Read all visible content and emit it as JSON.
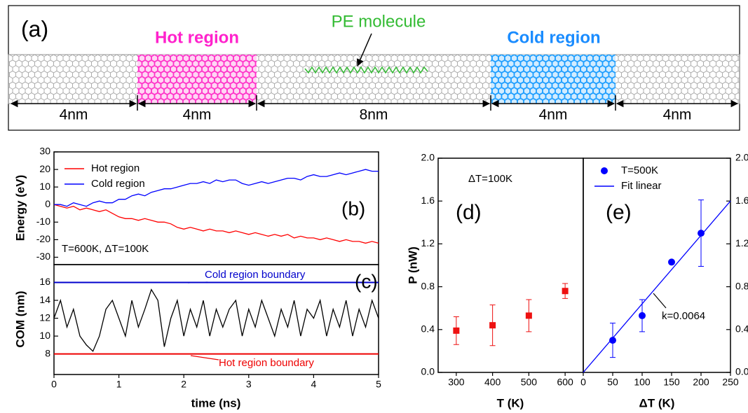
{
  "diagram": {
    "label": "(a)",
    "hot_region": "Hot region",
    "molecule": "PE molecule",
    "cold_region": "Cold region",
    "lengths": [
      "4nm",
      "4nm",
      "8nm",
      "4nm",
      "4nm"
    ]
  },
  "chart_data": [
    {
      "type": "line",
      "label": "(b)",
      "annotation": "T=600K, ΔT=100K",
      "ylabel": "Energy (eV)",
      "x": [
        0,
        0.1,
        0.2,
        0.3,
        0.4,
        0.5,
        0.6,
        0.7,
        0.8,
        0.9,
        1,
        1.1,
        1.2,
        1.3,
        1.4,
        1.5,
        1.6,
        1.7,
        1.8,
        1.9,
        2,
        2.1,
        2.2,
        2.3,
        2.4,
        2.5,
        2.6,
        2.7,
        2.8,
        2.9,
        3,
        3.1,
        3.2,
        3.3,
        3.4,
        3.5,
        3.6,
        3.7,
        3.8,
        3.9,
        4,
        4.1,
        4.2,
        4.3,
        4.4,
        4.5,
        4.6,
        4.7,
        4.8,
        4.9,
        5
      ],
      "xlim": [
        0,
        5
      ],
      "ylim": [
        -34.2,
        30
      ],
      "yticks": [
        -30,
        -20,
        -10,
        0,
        10,
        20,
        30
      ],
      "legend": "upper left",
      "series": [
        {
          "name": "Hot region",
          "color": "#ff0000",
          "values": [
            0,
            -1,
            -2,
            -1,
            -3,
            -2,
            -3,
            -4,
            -3,
            -5,
            -7,
            -8,
            -8,
            -9,
            -8,
            -9,
            -10,
            -10,
            -11,
            -13,
            -14,
            -13,
            -14,
            -15,
            -14,
            -15,
            -15,
            -16,
            -15,
            -16,
            -17,
            -16,
            -17,
            -18,
            -17,
            -18,
            -17,
            -19,
            -18,
            -19,
            -19,
            -20,
            -19,
            -20,
            -21,
            -20,
            -21,
            -21,
            -22,
            -21,
            -22
          ]
        },
        {
          "name": "Cold region",
          "color": "#0000ff",
          "values": [
            0,
            0,
            -1,
            1,
            0,
            -1,
            1,
            2,
            1,
            1,
            3,
            3,
            5,
            6,
            5,
            7,
            8,
            9,
            9,
            10,
            11,
            12,
            12,
            13,
            12,
            14,
            13,
            14,
            14,
            12,
            11,
            12,
            13,
            12,
            13,
            14,
            15,
            15,
            14,
            16,
            17,
            16,
            16,
            17,
            18,
            17,
            18,
            19,
            20,
            19,
            19
          ]
        }
      ]
    },
    {
      "type": "line",
      "label": "(c)",
      "ylabel": "COM (nm)",
      "xlabel": "time (ns)",
      "x": [
        0,
        0.1,
        0.2,
        0.3,
        0.4,
        0.5,
        0.6,
        0.7,
        0.8,
        0.9,
        1,
        1.1,
        1.2,
        1.3,
        1.4,
        1.5,
        1.6,
        1.7,
        1.8,
        1.9,
        2,
        2.1,
        2.2,
        2.3,
        2.4,
        2.5,
        2.6,
        2.7,
        2.8,
        2.9,
        3,
        3.1,
        3.2,
        3.3,
        3.4,
        3.5,
        3.6,
        3.7,
        3.8,
        3.9,
        4,
        4.1,
        4.2,
        4.3,
        4.4,
        4.5,
        4.6,
        4.7,
        4.8,
        4.9,
        5
      ],
      "xlim": [
        0,
        5
      ],
      "xticks": [
        0,
        1,
        2,
        3,
        4,
        5
      ],
      "ylim": [
        5.7,
        18
      ],
      "yticks": [
        8,
        10,
        12,
        14,
        16
      ],
      "series": [
        {
          "color": "#000000",
          "values": [
            12,
            14,
            11,
            13,
            10,
            9,
            8.3,
            10,
            13,
            14,
            12,
            10,
            14,
            11,
            13,
            15.2,
            14,
            8.8,
            12,
            14,
            10,
            13,
            11,
            14,
            10,
            13,
            11,
            13,
            14,
            10,
            13,
            11,
            14,
            12,
            10,
            13,
            11,
            14,
            10,
            13,
            12,
            14,
            10,
            13,
            11,
            14,
            10,
            13,
            11,
            14,
            12
          ]
        }
      ],
      "reference_lines": [
        {
          "label": "Cold region boundary",
          "value": 16,
          "color": "#0000cc"
        },
        {
          "label": "Hot region boundary",
          "value": 8,
          "color": "#ee0000"
        }
      ]
    },
    {
      "type": "scatter",
      "label": "(d)",
      "annotation": "ΔT=100K",
      "xlabel": "T (K)",
      "ylabel": "P (nW)",
      "x": [
        300,
        400,
        500,
        600
      ],
      "values": [
        0.39,
        0.44,
        0.53,
        0.76
      ],
      "errors": [
        0.13,
        0.19,
        0.15,
        0.07
      ],
      "color": "#ee1111",
      "marker": "square",
      "xlim": [
        250,
        650
      ],
      "xticks": [
        300,
        400,
        500,
        600
      ],
      "ylim": [
        0,
        2
      ],
      "yticks": [
        {
          "value": 0,
          "label": "0.0"
        },
        0.4,
        0.8,
        1.2,
        1.6,
        {
          "value": 2,
          "label": "2.0"
        }
      ]
    },
    {
      "type": "scatter",
      "label": "(e)",
      "annotation": "k=0.0064",
      "xlabel": "ΔT (K)",
      "legend": "upper left",
      "yaxis": "right",
      "xlim": [
        0,
        250
      ],
      "xticks": [
        0,
        50,
        100,
        150,
        200,
        250
      ],
      "ylim": [
        0,
        2
      ],
      "yticks": [
        {
          "value": 0,
          "label": "0.0"
        },
        0.4,
        0.8,
        1.2,
        1.6,
        {
          "value": 2,
          "label": "2.0"
        }
      ],
      "series": [
        {
          "name": "T=500K",
          "color": "#0000ff",
          "marker": "circle",
          "x": [
            50,
            100,
            150,
            200
          ],
          "values": [
            0.3,
            0.53,
            1.03,
            1.3
          ],
          "errors": [
            0.16,
            0.15,
            null,
            0.31
          ]
        },
        {
          "name": "Fit linear",
          "type": "line",
          "color": "#0000ff",
          "x": [
            0,
            250
          ],
          "values": [
            0,
            1.6
          ]
        }
      ]
    }
  ]
}
